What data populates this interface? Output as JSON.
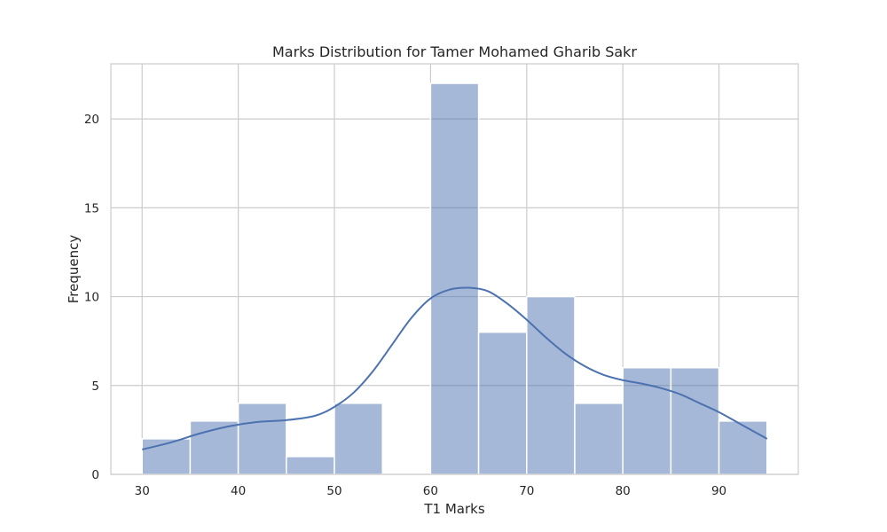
{
  "chart_data": {
    "type": "bar",
    "subtype": "histogram-with-kde",
    "title": "Marks Distribution for Tamer Mohamed Gharib Sakr",
    "xlabel": "T1 Marks",
    "ylabel": "Frequency",
    "xlim": [
      26.75,
      98.25
    ],
    "ylim": [
      0,
      23.1
    ],
    "xticks": [
      30,
      40,
      50,
      60,
      70,
      80,
      90
    ],
    "yticks": [
      0,
      5,
      10,
      15,
      20
    ],
    "grid": true,
    "bins": [
      {
        "start": 30,
        "end": 35,
        "count": 2
      },
      {
        "start": 35,
        "end": 40,
        "count": 3
      },
      {
        "start": 40,
        "end": 45,
        "count": 4
      },
      {
        "start": 45,
        "end": 50,
        "count": 1
      },
      {
        "start": 50,
        "end": 55,
        "count": 4
      },
      {
        "start": 55,
        "end": 60,
        "count": 0
      },
      {
        "start": 60,
        "end": 65,
        "count": 22
      },
      {
        "start": 65,
        "end": 70,
        "count": 8
      },
      {
        "start": 70,
        "end": 75,
        "count": 10
      },
      {
        "start": 75,
        "end": 80,
        "count": 4
      },
      {
        "start": 80,
        "end": 85,
        "count": 6
      },
      {
        "start": 85,
        "end": 90,
        "count": 6
      },
      {
        "start": 90,
        "end": 95,
        "count": 3
      }
    ],
    "kde": {
      "x": [
        30,
        33,
        36,
        39,
        42,
        45,
        48,
        50,
        52,
        54,
        56,
        58,
        60,
        62,
        64,
        66,
        68,
        70,
        72,
        74,
        76,
        78,
        80,
        82,
        84,
        86,
        88,
        90,
        92,
        95
      ],
      "y": [
        1.4,
        1.8,
        2.3,
        2.7,
        2.95,
        3.05,
        3.3,
        3.8,
        4.6,
        5.8,
        7.3,
        8.8,
        9.9,
        10.4,
        10.5,
        10.3,
        9.6,
        8.7,
        7.7,
        6.8,
        6.1,
        5.6,
        5.3,
        5.1,
        4.85,
        4.5,
        4.0,
        3.5,
        2.9,
        2.0
      ]
    },
    "colors": {
      "bar_fill": "#4c72b0",
      "bar_opacity": 0.5,
      "kde_line": "#4c72b0",
      "grid": "#cccccc",
      "frame": "#cccccc"
    }
  }
}
